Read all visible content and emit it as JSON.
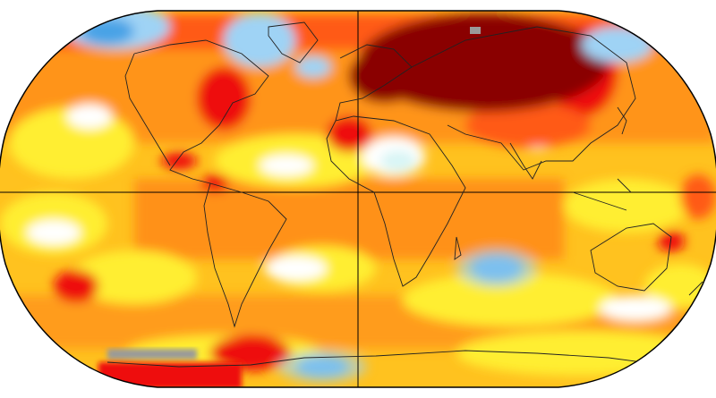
{
  "map": {
    "projection": "robinson",
    "palette": {
      "background": "#ffffff",
      "light_blue": "#9fd3f5",
      "blue": "#4aa3e6",
      "pale_cyan": "#d8f5f5",
      "white": "#ffffff",
      "yellow": "#ffee33",
      "gold": "#ffc21f",
      "orange": "#ff8c1a",
      "red_orange": "#ff5a14",
      "red": "#ee1111",
      "dark_red": "#8a0000",
      "grey": "#9a9a9a",
      "outline": "#000000",
      "coast": "#222222"
    }
  }
}
